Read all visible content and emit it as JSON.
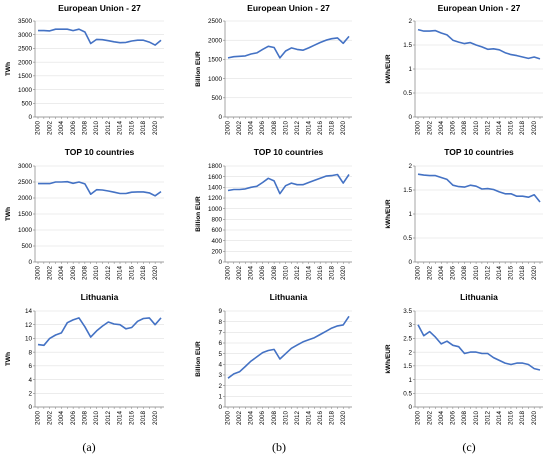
{
  "figure_labels": [
    "(a)",
    "(b)",
    "(c)"
  ],
  "colors": {
    "line": "#4472C4",
    "axis": "#7f7f7f",
    "grid": "#d9d9d9"
  },
  "chart_data": [
    {
      "type": "line",
      "title": "European Union - 27",
      "ylabel": "TWh",
      "ylim": [
        0,
        3500
      ],
      "yticks": [
        0,
        500,
        1000,
        1500,
        2000,
        2500,
        3000,
        3500
      ],
      "x": [
        2000,
        2001,
        2002,
        2003,
        2004,
        2005,
        2006,
        2007,
        2008,
        2009,
        2010,
        2011,
        2012,
        2013,
        2014,
        2015,
        2016,
        2017,
        2018,
        2019,
        2020,
        2021
      ],
      "series": [
        {
          "values": [
            3150,
            3150,
            3140,
            3200,
            3200,
            3200,
            3150,
            3200,
            3100,
            2680,
            2830,
            2820,
            2780,
            2740,
            2710,
            2720,
            2770,
            2800,
            2800,
            2730,
            2620,
            2800
          ]
        }
      ]
    },
    {
      "type": "line",
      "title": "European Union - 27",
      "ylabel": "Billion EUR",
      "ylim": [
        0,
        2500
      ],
      "yticks": [
        0,
        500,
        1000,
        1500,
        2000,
        2500
      ],
      "x": [
        2000,
        2001,
        2002,
        2003,
        2004,
        2005,
        2006,
        2007,
        2008,
        2009,
        2010,
        2011,
        2012,
        2013,
        2014,
        2015,
        2016,
        2017,
        2018,
        2019,
        2020,
        2021
      ],
      "series": [
        {
          "values": [
            1540,
            1570,
            1580,
            1590,
            1640,
            1670,
            1760,
            1840,
            1810,
            1540,
            1720,
            1800,
            1760,
            1740,
            1800,
            1870,
            1940,
            2000,
            2040,
            2060,
            1920,
            2100
          ]
        }
      ]
    },
    {
      "type": "line",
      "title": "European Union - 27",
      "ylabel": "kWh/EUR",
      "ylim": [
        0,
        2
      ],
      "yticks": [
        0,
        0.5,
        1,
        1.5,
        2
      ],
      "x": [
        2000,
        2001,
        2002,
        2003,
        2004,
        2005,
        2006,
        2007,
        2008,
        2009,
        2010,
        2011,
        2012,
        2013,
        2014,
        2015,
        2016,
        2017,
        2018,
        2019,
        2020,
        2021
      ],
      "series": [
        {
          "values": [
            1.82,
            1.79,
            1.79,
            1.8,
            1.75,
            1.71,
            1.6,
            1.56,
            1.53,
            1.55,
            1.5,
            1.46,
            1.41,
            1.42,
            1.4,
            1.34,
            1.3,
            1.28,
            1.25,
            1.22,
            1.25,
            1.21
          ]
        }
      ]
    },
    {
      "type": "line",
      "title": "TOP 10 countries",
      "ylabel": "TWh",
      "ylim": [
        0,
        3000
      ],
      "yticks": [
        0,
        500,
        1000,
        1500,
        2000,
        2500,
        3000
      ],
      "x": [
        2000,
        2001,
        2002,
        2003,
        2004,
        2005,
        2006,
        2007,
        2008,
        2009,
        2010,
        2011,
        2012,
        2013,
        2014,
        2015,
        2016,
        2017,
        2018,
        2019,
        2020,
        2021
      ],
      "series": [
        {
          "values": [
            2450,
            2450,
            2450,
            2500,
            2500,
            2510,
            2460,
            2500,
            2440,
            2120,
            2260,
            2250,
            2220,
            2180,
            2140,
            2140,
            2180,
            2190,
            2190,
            2160,
            2070,
            2200
          ]
        }
      ]
    },
    {
      "type": "line",
      "title": "TOP 10 countries",
      "ylabel": "Billion EUR",
      "ylim": [
        0,
        1800
      ],
      "yticks": [
        0,
        200,
        400,
        600,
        800,
        1000,
        1200,
        1400,
        1600,
        1800
      ],
      "x": [
        2000,
        2001,
        2002,
        2003,
        2004,
        2005,
        2006,
        2007,
        2008,
        2009,
        2010,
        2011,
        2012,
        2013,
        2014,
        2015,
        2016,
        2017,
        2018,
        2019,
        2020,
        2021
      ],
      "series": [
        {
          "values": [
            1340,
            1360,
            1360,
            1370,
            1400,
            1420,
            1490,
            1570,
            1520,
            1280,
            1430,
            1480,
            1450,
            1450,
            1490,
            1530,
            1570,
            1610,
            1620,
            1640,
            1480,
            1640
          ]
        }
      ]
    },
    {
      "type": "line",
      "title": "TOP 10 countries",
      "ylabel": "kWh/EUR",
      "ylim": [
        0,
        2
      ],
      "yticks": [
        0,
        0.5,
        1,
        1.5,
        2
      ],
      "x": [
        2000,
        2001,
        2002,
        2003,
        2004,
        2005,
        2006,
        2007,
        2008,
        2009,
        2010,
        2011,
        2012,
        2013,
        2014,
        2015,
        2016,
        2017,
        2018,
        2019,
        2020,
        2021
      ],
      "series": [
        {
          "values": [
            1.83,
            1.81,
            1.8,
            1.8,
            1.76,
            1.72,
            1.6,
            1.57,
            1.56,
            1.6,
            1.58,
            1.52,
            1.53,
            1.51,
            1.46,
            1.42,
            1.42,
            1.37,
            1.37,
            1.35,
            1.4,
            1.25
          ]
        }
      ]
    },
    {
      "type": "line",
      "title": "Lithuania",
      "ylabel": "TWh",
      "ylim": [
        0,
        14
      ],
      "yticks": [
        0,
        2,
        4,
        6,
        8,
        10,
        12,
        14
      ],
      "x": [
        2000,
        2001,
        2002,
        2003,
        2004,
        2005,
        2006,
        2007,
        2008,
        2009,
        2010,
        2011,
        2012,
        2013,
        2014,
        2015,
        2016,
        2017,
        2018,
        2019,
        2020,
        2021
      ],
      "series": [
        {
          "values": [
            9.1,
            9.0,
            10.0,
            10.5,
            10.8,
            12.3,
            12.7,
            13.0,
            11.7,
            10.2,
            11.1,
            11.8,
            12.4,
            12.1,
            12.0,
            11.4,
            11.6,
            12.5,
            12.9,
            13.0,
            12.0,
            13.0
          ]
        }
      ]
    },
    {
      "type": "line",
      "title": "Lithuania",
      "ylabel": "Billion EUR",
      "ylim": [
        0,
        9
      ],
      "yticks": [
        0,
        1,
        2,
        3,
        4,
        5,
        6,
        7,
        8,
        9
      ],
      "x": [
        2000,
        2001,
        2002,
        2003,
        2004,
        2005,
        2006,
        2007,
        2008,
        2009,
        2010,
        2011,
        2012,
        2013,
        2014,
        2015,
        2016,
        2017,
        2018,
        2019,
        2020,
        2021
      ],
      "series": [
        {
          "values": [
            2.7,
            3.1,
            3.3,
            3.8,
            4.3,
            4.7,
            5.1,
            5.3,
            5.4,
            4.5,
            5.0,
            5.5,
            5.8,
            6.1,
            6.3,
            6.5,
            6.8,
            7.1,
            7.4,
            7.6,
            7.7,
            8.5
          ]
        }
      ]
    },
    {
      "type": "line",
      "title": "Lithuania",
      "ylabel": "kWh/EUR",
      "ylim": [
        0,
        3.5
      ],
      "yticks": [
        0,
        0.5,
        1,
        1.5,
        2,
        2.5,
        3,
        3.5
      ],
      "x": [
        2000,
        2001,
        2002,
        2003,
        2004,
        2005,
        2006,
        2007,
        2008,
        2009,
        2010,
        2011,
        2012,
        2013,
        2014,
        2015,
        2016,
        2017,
        2018,
        2019,
        2020,
        2021
      ],
      "series": [
        {
          "values": [
            3.0,
            2.6,
            2.75,
            2.55,
            2.3,
            2.4,
            2.25,
            2.2,
            1.95,
            2.0,
            2.0,
            1.95,
            1.95,
            1.8,
            1.7,
            1.6,
            1.55,
            1.6,
            1.6,
            1.55,
            1.4,
            1.35
          ]
        }
      ]
    }
  ]
}
